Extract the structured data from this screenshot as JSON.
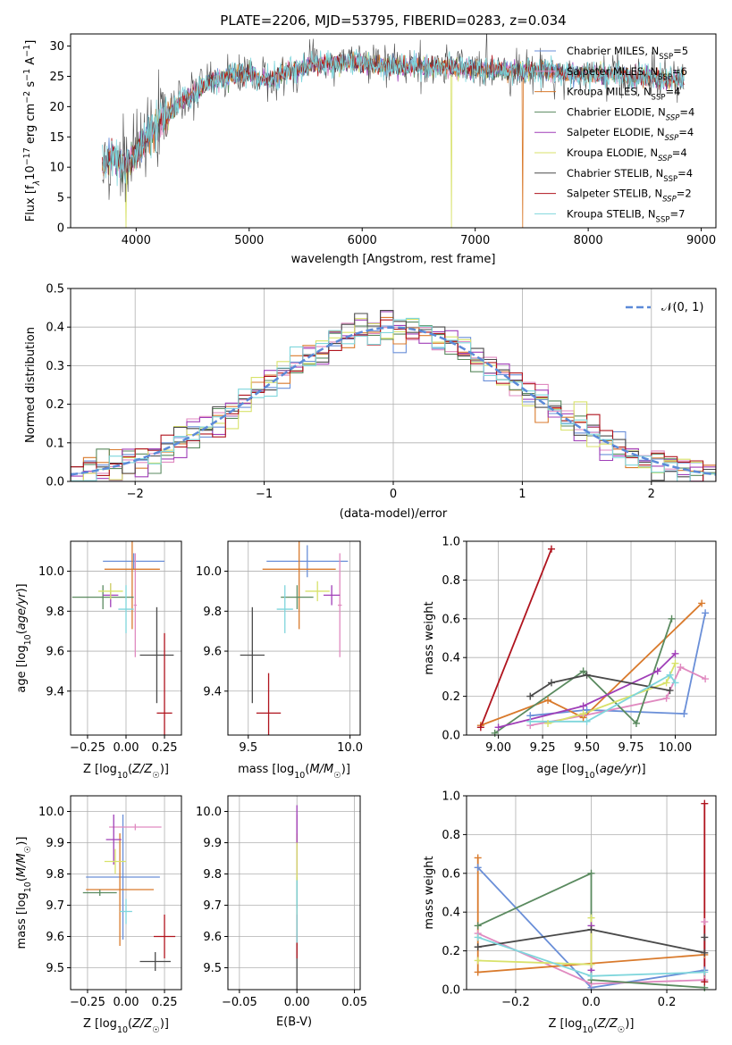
{
  "page": {
    "title": "PLATE=2206, MJD=53795, FIBERID=0283, z=0.034"
  },
  "models": [
    {
      "name": "Chabrier MILES",
      "nssp": 5,
      "legend": "Chabrier MILES, N",
      "color": "#6a8fd8"
    },
    {
      "name": "Salpeter MILES",
      "nssp": 6,
      "legend": "Salpeter MILES, N",
      "color": "#e08ac0"
    },
    {
      "name": "Kroupa MILES",
      "nssp": 4,
      "legend": "Kroupa MILES, N",
      "color": "#d97a2c"
    },
    {
      "name": "Chabrier ELODIE",
      "nssp": 4,
      "legend": "Chabrier ELODIE, N",
      "color": "#5a8a5f"
    },
    {
      "name": "Salpeter ELODIE",
      "nssp": 4,
      "legend": "Salpeter ELODIE, N",
      "color": "#a03fb8"
    },
    {
      "name": "Kroupa ELODIE",
      "nssp": 4,
      "legend": "Kroupa ELODIE, N",
      "color": "#d8e26a"
    },
    {
      "name": "Chabrier STELIB",
      "nssp": 4,
      "legend": "Chabrier STELIB, N",
      "color": "#4a4a4a"
    },
    {
      "name": "Salpeter STELIB",
      "nssp": 2,
      "legend": "Salpeter STELIB, N",
      "color": "#b0141e"
    },
    {
      "name": "Kroupa STELIB",
      "nssp": 7,
      "legend": "Kroupa STELIB, N",
      "color": "#7fd6dc"
    }
  ],
  "legend_suffix": {
    "sub": "SSP",
    "eq": "="
  },
  "chart_data": [
    {
      "id": "spectrum",
      "type": "line",
      "title": "PLATE=2206, MJD=53795, FIBERID=0283, z=0.034",
      "xlabel": "wavelength [Angstrom, rest frame]",
      "ylabel_parts": [
        "Flux [f",
        "λ",
        "10",
        "−17",
        " erg cm",
        "−2",
        " s",
        "−1",
        " A",
        "−1",
        "]"
      ],
      "xlim": [
        3420,
        9130
      ],
      "ylim": [
        0,
        32
      ],
      "xticks": [
        4000,
        5000,
        6000,
        7000,
        8000,
        9000
      ],
      "yticks": [
        0,
        5,
        10,
        15,
        20,
        25,
        30
      ],
      "grid": false,
      "legend_placement": "upper right",
      "continuum": {
        "x": [
          3700,
          3800,
          3900,
          4000,
          4100,
          4200,
          4300,
          4400,
          4500,
          4600,
          4700,
          4800,
          4900,
          5000,
          5100,
          5200,
          5300,
          5400,
          5500,
          5600,
          5700,
          5800,
          5900,
          6000,
          6100,
          6200,
          6300,
          6400,
          6500,
          6600,
          6700,
          6800,
          6900,
          7000,
          7100,
          7200,
          7300,
          7400,
          7500,
          7600,
          7700,
          7800,
          7900,
          8000,
          8100,
          8200,
          8300,
          8400,
          8500,
          8600,
          8700,
          8800,
          8850
        ],
        "y": [
          10,
          12,
          10,
          12,
          15,
          17,
          19,
          21,
          22,
          23.5,
          24.5,
          25,
          25.5,
          25.5,
          24.5,
          24.5,
          25.5,
          26,
          26.5,
          27,
          27,
          27.3,
          27.5,
          27.2,
          27,
          26.8,
          26.8,
          26.5,
          27,
          26.5,
          26.5,
          26.5,
          26.5,
          26.3,
          26.2,
          26.2,
          26,
          25.8,
          26,
          26,
          25.6,
          25.5,
          25.4,
          25.3,
          25.2,
          25.4,
          25.3,
          24.5,
          25.2,
          24.8,
          24.5,
          24.5,
          24.5
        ]
      },
      "drops": [
        {
          "x": 3910,
          "model": "Kroupa ELODIE"
        },
        {
          "x": 6790,
          "model": "Kroupa ELODIE"
        },
        {
          "x": 7420,
          "model": "Kroupa MILES"
        }
      ]
    },
    {
      "id": "residual-histogram",
      "type": "step-histogram",
      "xlabel": "(data-model)/error",
      "ylabel": "Normed distribution",
      "xlim": [
        -2.5,
        2.5
      ],
      "ylim": [
        0,
        0.5
      ],
      "xticks": [
        -2,
        -1,
        0,
        1,
        2
      ],
      "yticks": [
        0,
        0.1,
        0.2,
        0.3,
        0.4,
        0.5
      ],
      "grid": true,
      "bin_width": 0.1,
      "reference_curve": {
        "name": "N(0,1)",
        "label_prefix": "𝒩",
        "label_args": "(0, 1)",
        "color": "#5b8ad8"
      },
      "legend_placement": "upper right"
    },
    {
      "id": "age-vs-Z",
      "type": "errorbar",
      "xlabel": "Z [log10(Z/Z☉)]",
      "ylabel": "age  [log10(age/yr)]",
      "xlim": [
        -0.36,
        0.36
      ],
      "ylim": [
        9.18,
        10.15
      ],
      "xticks": [
        -0.25,
        0.0,
        0.25
      ],
      "xticklabels": [
        "−0.25",
        "0.00",
        "0.25"
      ],
      "yticks": [
        9.4,
        9.6,
        9.8,
        10.0
      ],
      "grid": true,
      "points": [
        {
          "model": "Chabrier MILES",
          "x": 0.05,
          "xerr": 0.2,
          "y": 10.05,
          "yerr": 0.04
        },
        {
          "model": "Salpeter MILES",
          "x": 0.06,
          "xerr": 0.01,
          "y": 9.83,
          "yerr": 0.26
        },
        {
          "model": "Kroupa MILES",
          "x": 0.04,
          "xerr": 0.18,
          "y": 10.01,
          "yerr": 0.3
        },
        {
          "model": "Chabrier ELODIE",
          "x": -0.15,
          "xerr": 0.2,
          "y": 9.87,
          "yerr": 0.06
        },
        {
          "model": "Salpeter ELODIE",
          "x": -0.1,
          "xerr": 0.05,
          "y": 9.88,
          "yerr": 0.06
        },
        {
          "model": "Kroupa ELODIE",
          "x": -0.1,
          "xerr": 0.08,
          "y": 9.9,
          "yerr": 0.04
        },
        {
          "model": "Chabrier STELIB",
          "x": 0.2,
          "xerr": 0.11,
          "y": 9.58,
          "yerr": 0.24
        },
        {
          "model": "Salpeter STELIB",
          "x": 0.25,
          "xerr": 0.05,
          "y": 9.29,
          "yerr": 0.4
        },
        {
          "model": "Kroupa STELIB",
          "x": 0.0,
          "xerr": 0.05,
          "y": 9.81,
          "yerr": 0.12
        }
      ]
    },
    {
      "id": "age-vs-mass",
      "type": "errorbar",
      "xlabel": "mass [log10(M/M☉)]",
      "xlim": [
        9.4,
        10.05
      ],
      "ylim": [
        9.18,
        10.15
      ],
      "xticks": [
        9.5,
        10.0
      ],
      "xticklabels": [
        "9.5",
        "10.0"
      ],
      "yticks": [
        9.4,
        9.6,
        9.8,
        10.0
      ],
      "grid": true,
      "points": [
        {
          "model": "Chabrier MILES",
          "x": 9.79,
          "xerr": 0.2,
          "y": 10.05,
          "yerr": 0.08
        },
        {
          "model": "Salpeter MILES",
          "x": 9.95,
          "xerr": 0.01,
          "y": 9.83,
          "yerr": 0.26
        },
        {
          "model": "Kroupa MILES",
          "x": 9.75,
          "xerr": 0.18,
          "y": 10.01,
          "yerr": 0.3
        },
        {
          "model": "Chabrier ELODIE",
          "x": 9.74,
          "xerr": 0.08,
          "y": 9.87,
          "yerr": 0.06
        },
        {
          "model": "Salpeter ELODIE",
          "x": 9.91,
          "xerr": 0.04,
          "y": 9.88,
          "yerr": 0.05
        },
        {
          "model": "Kroupa ELODIE",
          "x": 9.84,
          "xerr": 0.06,
          "y": 9.9,
          "yerr": 0.05
        },
        {
          "model": "Chabrier STELIB",
          "x": 9.52,
          "xerr": 0.06,
          "y": 9.58,
          "yerr": 0.24
        },
        {
          "model": "Salpeter STELIB",
          "x": 9.6,
          "xerr": 0.06,
          "y": 9.29,
          "yerr": 0.2
        },
        {
          "model": "Kroupa STELIB",
          "x": 9.68,
          "xerr": 0.04,
          "y": 9.81,
          "yerr": 0.12
        }
      ]
    },
    {
      "id": "massweight-vs-age",
      "type": "line",
      "xlabel": "age  [log10(age/yr)]",
      "ylabel": "mass weight",
      "xlim": [
        8.82,
        10.23
      ],
      "ylim": [
        0,
        1
      ],
      "xticks": [
        9.0,
        9.25,
        9.5,
        9.75,
        10.0
      ],
      "xticklabels": [
        "9.00",
        "9.25",
        "9.50",
        "9.75",
        "10.00"
      ],
      "yticks": [
        0,
        0.2,
        0.4,
        0.6,
        0.8,
        1.0
      ],
      "grid": true,
      "series": [
        {
          "model": "Chabrier MILES",
          "x": [
            9.18,
            9.5,
            10.05,
            10.17
          ],
          "y": [
            0.1,
            0.13,
            0.11,
            0.63
          ]
        },
        {
          "model": "Salpeter MILES",
          "x": [
            9.18,
            9.48,
            9.95,
            10.03,
            10.17
          ],
          "y": [
            0.05,
            0.1,
            0.19,
            0.35,
            0.29
          ]
        },
        {
          "model": "Kroupa MILES",
          "x": [
            8.9,
            9.28,
            9.48,
            10.15
          ],
          "y": [
            0.05,
            0.18,
            0.09,
            0.68
          ]
        },
        {
          "model": "Chabrier ELODIE",
          "x": [
            8.98,
            9.48,
            9.78,
            9.98
          ],
          "y": [
            0.01,
            0.33,
            0.06,
            0.6
          ]
        },
        {
          "model": "Salpeter ELODIE",
          "x": [
            9.0,
            9.48,
            9.9,
            10.0
          ],
          "y": [
            0.04,
            0.15,
            0.33,
            0.42
          ]
        },
        {
          "model": "Kroupa ELODIE",
          "x": [
            9.28,
            9.48,
            9.95,
            10.0
          ],
          "y": [
            0.06,
            0.11,
            0.27,
            0.37
          ]
        },
        {
          "model": "Chabrier STELIB",
          "x": [
            9.18,
            9.3,
            9.5,
            9.97
          ],
          "y": [
            0.2,
            0.27,
            0.31,
            0.23
          ]
        },
        {
          "model": "Salpeter STELIB",
          "x": [
            8.9,
            9.3
          ],
          "y": [
            0.04,
            0.96
          ]
        },
        {
          "model": "Kroupa STELIB",
          "x": [
            9.18,
            9.5,
            9.97,
            10.0
          ],
          "y": [
            0.07,
            0.07,
            0.31,
            0.27
          ]
        }
      ]
    },
    {
      "id": "mass-vs-Z",
      "type": "errorbar",
      "xlabel": "Z [log10(Z/Z☉)]",
      "ylabel": "mass [log10(M/M☉)]",
      "xlim": [
        -0.36,
        0.36
      ],
      "ylim": [
        9.43,
        10.05
      ],
      "xticks": [
        -0.25,
        0.0,
        0.25
      ],
      "xticklabels": [
        "−0.25",
        "0.00",
        "0.25"
      ],
      "yticks": [
        9.5,
        9.6,
        9.7,
        9.8,
        9.9,
        10.0
      ],
      "grid": true,
      "points": [
        {
          "model": "Chabrier MILES",
          "x": -0.02,
          "xerr": 0.24,
          "y": 9.79,
          "yerr": 0.2
        },
        {
          "model": "Salpeter MILES",
          "x": 0.06,
          "xerr": 0.17,
          "y": 9.95,
          "yerr": 0.01
        },
        {
          "model": "Kroupa MILES",
          "x": -0.04,
          "xerr": 0.22,
          "y": 9.75,
          "yerr": 0.18
        },
        {
          "model": "Chabrier ELODIE",
          "x": -0.17,
          "xerr": 0.11,
          "y": 9.74,
          "yerr": 0.01
        },
        {
          "model": "Salpeter ELODIE",
          "x": -0.08,
          "xerr": 0.05,
          "y": 9.91,
          "yerr": 0.08
        },
        {
          "model": "Kroupa ELODIE",
          "x": -0.07,
          "xerr": 0.07,
          "y": 9.84,
          "yerr": 0.04
        },
        {
          "model": "Chabrier STELIB",
          "x": 0.19,
          "xerr": 0.1,
          "y": 9.52,
          "yerr": 0.03
        },
        {
          "model": "Salpeter STELIB",
          "x": 0.25,
          "xerr": 0.07,
          "y": 9.6,
          "yerr": 0.07
        },
        {
          "model": "Kroupa STELIB",
          "x": 0.0,
          "xerr": 0.04,
          "y": 9.68,
          "yerr": 0.04
        }
      ]
    },
    {
      "id": "mass-vs-ebv",
      "type": "errorbar",
      "xlabel": "E(B-V)",
      "xlim": [
        -0.06,
        0.055
      ],
      "ylim": [
        9.43,
        10.05
      ],
      "xticks": [
        -0.05,
        0.0,
        0.05
      ],
      "xticklabels": [
        "−0.05",
        "0.00",
        "0.05"
      ],
      "yticks": [
        9.5,
        9.6,
        9.7,
        9.8,
        9.9,
        10.0
      ],
      "grid": true,
      "points": [
        {
          "model": "Chabrier MILES",
          "x": 0.0,
          "xerr": 0.0,
          "y": 9.79,
          "yerr": 0.2
        },
        {
          "model": "Salpeter MILES",
          "x": 0.0,
          "xerr": 0.0,
          "y": 9.95,
          "yerr": 0.04
        },
        {
          "model": "Kroupa MILES",
          "x": 0.0,
          "xerr": 0.0,
          "y": 9.75,
          "yerr": 0.18
        },
        {
          "model": "Chabrier ELODIE",
          "x": 0.0,
          "xerr": 0.0,
          "y": 9.74,
          "yerr": 0.05
        },
        {
          "model": "Salpeter ELODIE",
          "x": 0.0,
          "xerr": 0.0,
          "y": 9.91,
          "yerr": 0.11
        },
        {
          "model": "Kroupa ELODIE",
          "x": 0.0,
          "xerr": 0.0,
          "y": 9.84,
          "yerr": 0.06
        },
        {
          "model": "Chabrier STELIB",
          "x": 0.0,
          "xerr": 0.0,
          "y": 9.52,
          "yerr": 0.09
        },
        {
          "model": "Salpeter STELIB",
          "x": 0.0,
          "xerr": 0.0,
          "y": 9.6,
          "yerr": 0.07
        },
        {
          "model": "Kroupa STELIB",
          "x": 0.0,
          "xerr": 0.0,
          "y": 9.68,
          "yerr": 0.1
        }
      ]
    },
    {
      "id": "massweight-vs-Z",
      "type": "line",
      "xlabel": "Z [log10(Z/Z☉)]",
      "ylabel": "mass weight",
      "xlim": [
        -0.33,
        0.33
      ],
      "ylim": [
        0,
        1
      ],
      "xticks": [
        -0.2,
        0.0,
        0.2
      ],
      "xticklabels": [
        "−0.2",
        "0.0",
        "0.2"
      ],
      "yticks": [
        0,
        0.2,
        0.4,
        0.6,
        0.8,
        1.0
      ],
      "grid": true,
      "series": [
        {
          "model": "Chabrier MILES",
          "x": [
            -0.3,
            0.0,
            0.3
          ],
          "y": [
            0.63,
            0.01,
            0.1
          ]
        },
        {
          "model": "Salpeter MILES",
          "x": [
            -0.3,
            0.0,
            0.3,
            0.3
          ],
          "y": [
            0.29,
            0.03,
            0.05,
            0.35
          ]
        },
        {
          "model": "Kroupa MILES",
          "x": [
            -0.3,
            -0.3,
            0.3
          ],
          "y": [
            0.68,
            0.09,
            0.18
          ]
        },
        {
          "model": "Chabrier ELODIE",
          "x": [
            -0.3,
            0.0,
            0.0,
            0.3
          ],
          "y": [
            0.33,
            0.6,
            0.05,
            0.01
          ]
        },
        {
          "model": "Salpeter ELODIE",
          "x": [
            0.0,
            0.0
          ],
          "y": [
            0.1,
            0.33
          ]
        },
        {
          "model": "Kroupa ELODIE",
          "x": [
            -0.3,
            0.0,
            0.0
          ],
          "y": [
            0.15,
            0.13,
            0.37
          ]
        },
        {
          "model": "Chabrier STELIB",
          "x": [
            -0.3,
            0.0,
            0.3,
            0.3
          ],
          "y": [
            0.22,
            0.31,
            0.19,
            0.27
          ]
        },
        {
          "model": "Salpeter STELIB",
          "x": [
            0.3,
            0.3
          ],
          "y": [
            0.04,
            0.96
          ]
        },
        {
          "model": "Kroupa STELIB",
          "x": [
            -0.3,
            0.0,
            0.3
          ],
          "y": [
            0.27,
            0.07,
            0.09
          ]
        }
      ]
    }
  ]
}
